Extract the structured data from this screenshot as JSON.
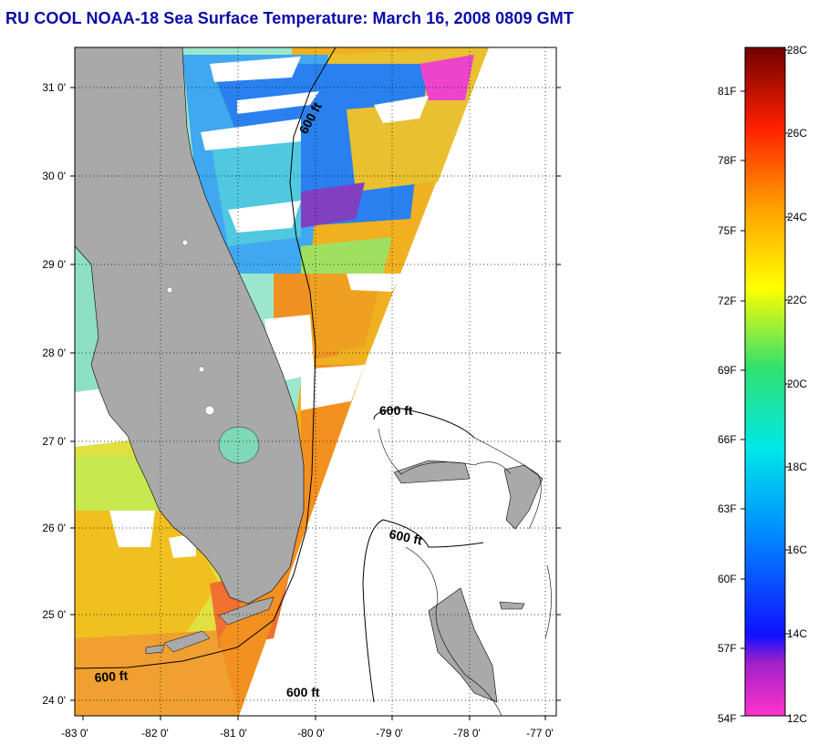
{
  "title": "RU COOL  NOAA-18  Sea Surface Temperature:  March 16, 2008 0809 GMT",
  "map": {
    "lon_ticks": [
      "-83 0'",
      "-82 0'",
      "-81 0'",
      "-80 0'",
      "-79 0'",
      "-78 0'",
      "-77 0'"
    ],
    "lat_ticks": [
      "31 0'",
      "30 0'",
      "29 0'",
      "28 0'",
      "27 0'",
      "26 0'",
      "25 0'",
      "24 0'"
    ],
    "contour_labels": [
      "600 ft",
      "600 ft",
      "600 ft",
      "600 ft",
      "600 ft"
    ],
    "colors": {
      "land": "#a9a9a9",
      "no_data": "#ffffff",
      "contour": "#000000"
    }
  },
  "colorbar": {
    "fahrenheit": [
      "81F",
      "78F",
      "75F",
      "72F",
      "69F",
      "66F",
      "63F",
      "60F",
      "57F",
      "54F"
    ],
    "celsius": [
      "28C",
      "26C",
      "24C",
      "22C",
      "20C",
      "18C",
      "16C",
      "14C",
      "12C"
    ]
  }
}
